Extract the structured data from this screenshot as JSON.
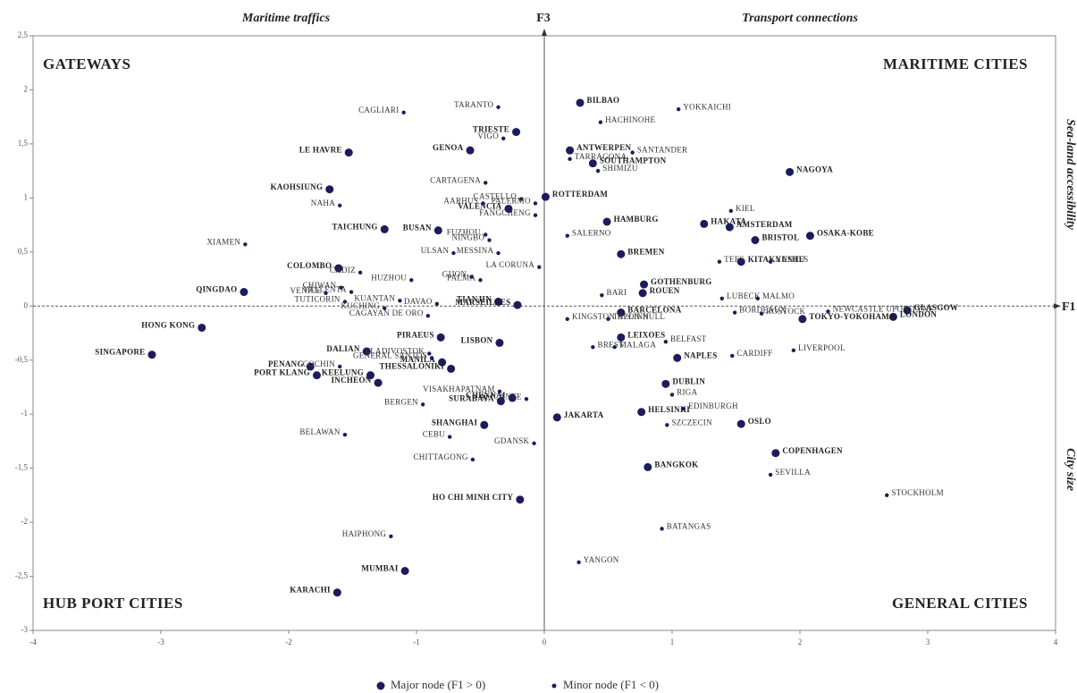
{
  "chart_data": {
    "type": "scatter",
    "x_axis_label": "F1",
    "y_axis_label": "F3",
    "top_notes": [
      "Maritime traffics",
      "Transport connections"
    ],
    "right_notes": [
      "Sea-land accessibility",
      "City size"
    ],
    "quadrant_labels": [
      "GATEWAYS",
      "MARITIME CITIES",
      "HUB PORT CITIES",
      "GENERAL CITIES"
    ],
    "xlim": [
      -4,
      4
    ],
    "ylim": [
      -3,
      2.5
    ],
    "xticks": [
      -4,
      -3,
      -2,
      -1,
      0,
      1,
      2,
      3,
      4
    ],
    "yticks": [
      {
        "value": 2.5,
        "label": "2,5"
      },
      2,
      {
        "value": 1.5,
        "label": "1,5"
      },
      1,
      {
        "value": 0.5,
        "label": "0,5"
      },
      0,
      {
        "value": -0.5,
        "label": "-0,5"
      },
      -1,
      {
        "value": -1.5,
        "label": "-1,5"
      },
      -2,
      {
        "value": -2.5,
        "label": "-2,5"
      },
      -3
    ],
    "series": [
      {
        "name": "Major node (F1 > 0)",
        "color": "#1c1c5c",
        "labels": [
          "BILBAO",
          "TRIESTE",
          "GENOA",
          "ANTWERPEN",
          "LE HAVRE",
          "SOUTHAMPTON",
          "NAGOYA",
          "KAOHSIUNG",
          "ROTTERDAM",
          "VALENCIA",
          "HAMBURG",
          "HAKATA",
          "AMSTERDAM",
          "TAICHUNG",
          "BUSAN",
          "BRISTOL",
          "OSAKA-KOBE",
          "BREMEN",
          "KITAKYUSHU",
          "COLOMBO",
          "GOTHENBURG",
          "QINGDAO",
          "ROUEN",
          "TIANJIN",
          "MARSEILLES",
          "BARCELONA",
          "GLASGOW",
          "LONDON",
          "TOKYO-YOKOHAMA",
          "HONG KONG",
          "PIRAEUS",
          "LEIXOES",
          "LISBON",
          "DALIAN",
          "SINGAPORE",
          "NAPLES",
          "PENANG",
          "MANILA",
          "THESSALONIKI",
          "KEELUNG",
          "PORT KLANG",
          "INCHEON",
          "DUBLIN",
          "CHENNAI",
          "SURABAYA",
          "HELSINKI",
          "JAKARTA",
          "SHANGHAI",
          "OSLO",
          "COPENHAGEN",
          "BANGKOK",
          "HO CHI MINH CITY",
          "MUMBAI",
          "KARACHI"
        ],
        "x": [
          0.28,
          -0.22,
          -0.58,
          0.2,
          -1.53,
          0.38,
          1.92,
          -1.68,
          0.01,
          -0.28,
          0.49,
          1.25,
          1.45,
          -1.25,
          -0.83,
          1.65,
          2.08,
          0.6,
          1.54,
          -1.61,
          0.78,
          -2.35,
          0.77,
          -0.36,
          -0.21,
          0.6,
          2.84,
          2.73,
          2.02,
          -2.68,
          -0.81,
          0.6,
          -0.35,
          -1.39,
          -3.07,
          1.04,
          -1.83,
          -0.8,
          -0.73,
          -1.36,
          -1.78,
          -1.3,
          0.95,
          -0.25,
          -0.34,
          0.76,
          0.1,
          -0.47,
          1.54,
          1.81,
          0.81,
          -0.19,
          -1.09,
          -1.62
        ],
        "y": [
          1.88,
          1.61,
          1.44,
          1.44,
          1.42,
          1.32,
          1.24,
          1.08,
          1.01,
          0.9,
          0.78,
          0.76,
          0.73,
          0.71,
          0.7,
          0.61,
          0.65,
          0.48,
          0.41,
          0.35,
          0.2,
          0.13,
          0.12,
          0.04,
          0.01,
          -0.06,
          -0.04,
          -0.1,
          -0.12,
          -0.2,
          -0.29,
          -0.29,
          -0.34,
          -0.42,
          -0.45,
          -0.48,
          -0.56,
          -0.52,
          -0.58,
          -0.64,
          -0.64,
          -0.71,
          -0.72,
          -0.85,
          -0.88,
          -0.98,
          -1.03,
          -1.1,
          -1.09,
          -1.36,
          -1.49,
          -1.79,
          -2.45,
          -2.65
        ]
      },
      {
        "name": "Minor node (F1 < 0)",
        "color": "#1c1c5c",
        "labels": [
          "TARANTO",
          "YOKKAICHI",
          "CAGLIARI",
          "HACHINOHE",
          "VIGO",
          "SANTANDER",
          "TARRAGONA",
          "SHIMIZU",
          "CARTAGENA",
          "NAHA",
          "CASTELLO",
          "AARHUS",
          "PALERMO",
          "KIEL",
          "FANGCHENG",
          "FUZHOU",
          "NINGBO",
          "SALERNO",
          "XIAMEN",
          "ULSAN",
          "MESSINA",
          "TEES",
          "NANTES",
          "CADIZ",
          "LA CORUNA",
          "GIJON",
          "PALMA",
          "HUZHOU",
          "CHIWAN",
          "VALLENTA",
          "VENICE",
          "KUANTAN",
          "BARI",
          "LUBECK",
          "MALMO",
          "NEWCASTLE UPON TYNE",
          "TUTICORIN",
          "DAVAO",
          "KUCHING",
          "CAGAYAN DE ORO",
          "ROSTOCK",
          "BORDEAUX",
          "KINGSTON UPON HULL",
          "TALLINN",
          "BREST",
          "BELFAST",
          "LIVERPOOL",
          "VLADIVOSTOK",
          "GENERAL SANTOS",
          "MALAGA",
          "COCHIN",
          "CARDIFF",
          "VISAKHAPATNAM",
          "RIGA",
          "ALICANTE",
          "BERGEN",
          "EDINBURGH",
          "SZCZECIN",
          "BELAWAN",
          "CEBU",
          "GDANSK",
          "CHITTAGONG",
          "SEVILLA",
          "STOCKHOLM",
          "BATANGAS",
          "HAIPHONG",
          "YANGON"
        ],
        "x": [
          -0.36,
          1.05,
          -1.1,
          0.44,
          -0.32,
          0.69,
          0.2,
          0.42,
          -0.46,
          -1.6,
          -0.18,
          -0.48,
          -0.07,
          1.46,
          -0.07,
          -0.46,
          -0.43,
          0.18,
          -2.34,
          -0.71,
          -0.36,
          1.37,
          1.77,
          -1.44,
          -0.04,
          -0.57,
          -0.5,
          -1.04,
          -1.59,
          -1.51,
          -1.71,
          -1.13,
          0.45,
          1.39,
          1.67,
          2.22,
          -1.56,
          -0.84,
          -1.25,
          -0.91,
          1.7,
          1.49,
          0.18,
          0.5,
          0.38,
          0.95,
          1.95,
          -0.9,
          -0.88,
          0.55,
          -1.6,
          1.47,
          -0.35,
          1.0,
          -0.14,
          -0.95,
          1.09,
          0.96,
          -1.56,
          -0.74,
          -0.08,
          -0.56,
          1.77,
          2.68,
          0.92,
          -1.2,
          0.27
        ],
        "y": [
          1.84,
          1.82,
          1.79,
          1.7,
          1.55,
          1.42,
          1.36,
          1.25,
          1.14,
          0.93,
          0.99,
          0.95,
          0.95,
          0.88,
          0.84,
          0.66,
          0.61,
          0.65,
          0.57,
          0.49,
          0.49,
          0.41,
          0.41,
          0.31,
          0.36,
          0.27,
          0.24,
          0.24,
          0.17,
          0.13,
          0.12,
          0.05,
          0.1,
          0.07,
          0.07,
          -0.05,
          0.04,
          0.02,
          -0.02,
          -0.09,
          -0.07,
          -0.06,
          -0.12,
          -0.12,
          -0.38,
          -0.33,
          -0.41,
          -0.44,
          -0.48,
          -0.38,
          -0.56,
          -0.46,
          -0.79,
          -0.82,
          -0.86,
          -0.91,
          -0.95,
          -1.1,
          -1.19,
          -1.21,
          -1.27,
          -1.42,
          -1.56,
          -1.75,
          -2.06,
          -2.13,
          -2.37
        ]
      }
    ]
  }
}
